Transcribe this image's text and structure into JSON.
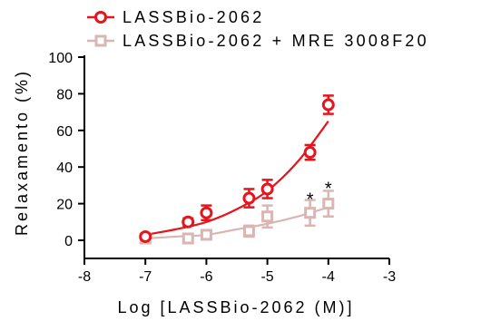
{
  "chart_data": {
    "type": "scatter",
    "xlabel": "Log [LASSBio-2062 (M)]",
    "ylabel": "Relaxamento (%)",
    "xlim": [
      -8,
      -3
    ],
    "ylim": [
      -10,
      100
    ],
    "xticks": [
      "-8",
      "-7",
      "-6",
      "-5",
      "-4",
      "-3"
    ],
    "yticks": [
      "0",
      "20",
      "40",
      "60",
      "80",
      "100"
    ],
    "grid": false,
    "legend_position": "top-left",
    "series": [
      {
        "name": "LASSBio-2062",
        "color": "#e8141b",
        "marker": "circle",
        "points": [
          {
            "x": -7.0,
            "y": 2,
            "err": 1
          },
          {
            "x": -6.3,
            "y": 10,
            "err": 2
          },
          {
            "x": -6.0,
            "y": 15,
            "err": 4
          },
          {
            "x": -5.3,
            "y": 23,
            "err": 5
          },
          {
            "x": -5.0,
            "y": 28,
            "err": 5
          },
          {
            "x": -4.3,
            "y": 48,
            "err": 4
          },
          {
            "x": -4.0,
            "y": 74,
            "err": 5
          }
        ],
        "fit": [
          [
            -7.0,
            3
          ],
          [
            -6.5,
            6
          ],
          [
            -6.0,
            10
          ],
          [
            -5.5,
            17
          ],
          [
            -5.0,
            27
          ],
          [
            -4.5,
            43
          ],
          [
            -4.0,
            65
          ]
        ]
      },
      {
        "name": "LASSBio-2062 + MRE 3008F20",
        "color": "#d9b5b3",
        "marker": "square",
        "points": [
          {
            "x": -7.0,
            "y": 1,
            "err": 2
          },
          {
            "x": -6.3,
            "y": 1,
            "err": 2
          },
          {
            "x": -6.0,
            "y": 3,
            "err": 2
          },
          {
            "x": -5.3,
            "y": 5,
            "err": 3
          },
          {
            "x": -5.0,
            "y": 13,
            "err": 6
          },
          {
            "x": -4.3,
            "y": 15,
            "err": 7
          },
          {
            "x": -4.0,
            "y": 20,
            "err": 7
          }
        ],
        "fit": [
          [
            -7.0,
            1
          ],
          [
            -6.5,
            2
          ],
          [
            -6.0,
            3
          ],
          [
            -5.5,
            6
          ],
          [
            -5.0,
            9
          ],
          [
            -4.5,
            13
          ],
          [
            -4.0,
            18
          ]
        ]
      }
    ],
    "annotations": [
      {
        "text": "*",
        "x": -4.3,
        "y": 22
      },
      {
        "text": "*",
        "x": -4.0,
        "y": 28
      }
    ]
  }
}
